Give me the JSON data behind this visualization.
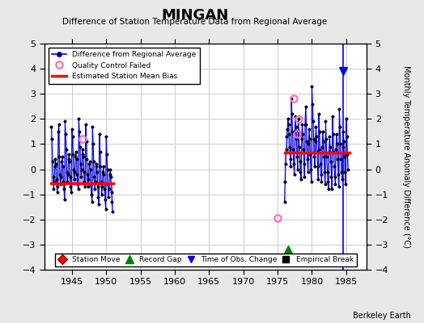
{
  "title": "MINGAN",
  "subtitle": "Difference of Station Temperature Data from Regional Average",
  "ylabel_right": "Monthly Temperature Anomaly Difference (°C)",
  "xlim": [
    1941,
    1988
  ],
  "ylim": [
    -4,
    5
  ],
  "yticks": [
    -4,
    -3,
    -2,
    -1,
    0,
    1,
    2,
    3,
    4,
    5
  ],
  "xticks": [
    1945,
    1950,
    1955,
    1960,
    1965,
    1970,
    1975,
    1980,
    1985
  ],
  "background_color": "#e8e8e8",
  "plot_bg_color": "#ffffff",
  "grid_color": "#cccccc",
  "watermark": "Berkeley Earth",
  "segment1_bias": -0.55,
  "segment2_bias": 0.65,
  "segment1_start": 1942.0,
  "segment1_end": 1951.0,
  "segment2_start": 1976.0,
  "segment2_end": 1985.5,
  "qc_failed_points": [
    [
      1946.5,
      1.2
    ],
    [
      1977.4,
      2.8
    ],
    [
      1978.1,
      2.0
    ],
    [
      1977.8,
      1.4
    ],
    [
      1975.0,
      -1.95
    ]
  ],
  "record_gap_x": 1976.5,
  "record_gap_y": -3.2,
  "time_obs_change_x": [
    1984.5
  ],
  "data_segment1": {
    "years": [
      1942.0,
      1942.083,
      1942.167,
      1942.25,
      1942.333,
      1942.417,
      1942.5,
      1942.583,
      1942.667,
      1942.75,
      1942.833,
      1942.917,
      1943.0,
      1943.083,
      1943.167,
      1943.25,
      1943.333,
      1943.417,
      1943.5,
      1943.583,
      1943.667,
      1943.75,
      1943.833,
      1943.917,
      1944.0,
      1944.083,
      1944.167,
      1944.25,
      1944.333,
      1944.417,
      1944.5,
      1944.583,
      1944.667,
      1944.75,
      1944.833,
      1944.917,
      1945.0,
      1945.083,
      1945.167,
      1945.25,
      1945.333,
      1945.417,
      1945.5,
      1945.583,
      1945.667,
      1945.75,
      1945.833,
      1945.917,
      1946.0,
      1946.083,
      1946.167,
      1946.25,
      1946.333,
      1946.417,
      1946.5,
      1946.583,
      1946.667,
      1946.75,
      1946.833,
      1946.917,
      1947.0,
      1947.083,
      1947.167,
      1947.25,
      1947.333,
      1947.417,
      1947.5,
      1947.583,
      1947.667,
      1947.75,
      1947.833,
      1947.917,
      1948.0,
      1948.083,
      1948.167,
      1948.25,
      1948.333,
      1948.417,
      1948.5,
      1948.583,
      1948.667,
      1948.75,
      1948.833,
      1948.917,
      1949.0,
      1949.083,
      1949.167,
      1949.25,
      1949.333,
      1949.417,
      1949.5,
      1949.583,
      1949.667,
      1949.75,
      1949.833,
      1949.917,
      1950.0,
      1950.083,
      1950.167,
      1950.25,
      1950.333,
      1950.417,
      1950.5,
      1950.583,
      1950.667,
      1950.75,
      1950.833,
      1950.917
    ],
    "values": [
      1.7,
      1.2,
      0.3,
      -0.3,
      -0.8,
      -0.5,
      0.1,
      0.4,
      0.2,
      -0.4,
      -0.9,
      -0.7,
      1.5,
      1.8,
      0.5,
      -0.2,
      -0.6,
      -0.3,
      0.3,
      0.5,
      0.1,
      -0.5,
      -0.8,
      -1.2,
      1.9,
      1.4,
      0.8,
      -0.1,
      -0.5,
      -0.2,
      0.4,
      0.6,
      0.3,
      -0.3,
      -0.7,
      -0.9,
      1.6,
      1.3,
      0.6,
      0.0,
      -0.4,
      -0.1,
      0.5,
      0.7,
      0.4,
      -0.2,
      -0.6,
      -0.8,
      2.0,
      1.5,
      0.9,
      0.2,
      -0.3,
      0.0,
      0.6,
      0.8,
      0.5,
      -0.1,
      -0.5,
      -0.7,
      1.8,
      1.1,
      0.4,
      -0.2,
      -0.7,
      -0.4,
      0.2,
      0.3,
      0.0,
      -0.6,
      -1.0,
      -1.3,
      1.7,
      1.0,
      0.3,
      -0.3,
      -0.8,
      -0.5,
      0.1,
      0.2,
      -0.1,
      -0.7,
      -1.1,
      -1.4,
      1.4,
      0.7,
      0.1,
      -0.5,
      -1.0,
      -0.7,
      -0.1,
      0.1,
      -0.2,
      -0.8,
      -1.2,
      -1.6,
      1.3,
      0.6,
      0.0,
      -0.6,
      -1.1,
      -0.8,
      -0.2,
      0.0,
      -0.3,
      -0.9,
      -1.3,
      -1.7
    ]
  },
  "data_segment2": {
    "years": [
      1976.0,
      1976.083,
      1976.167,
      1976.25,
      1976.333,
      1976.417,
      1976.5,
      1976.583,
      1976.667,
      1976.75,
      1976.833,
      1976.917,
      1977.0,
      1977.083,
      1977.167,
      1977.25,
      1977.333,
      1977.417,
      1977.5,
      1977.583,
      1977.667,
      1977.75,
      1977.833,
      1977.917,
      1978.0,
      1978.083,
      1978.167,
      1978.25,
      1978.333,
      1978.417,
      1978.5,
      1978.583,
      1978.667,
      1978.75,
      1978.833,
      1978.917,
      1979.0,
      1979.083,
      1979.167,
      1979.25,
      1979.333,
      1979.417,
      1979.5,
      1979.583,
      1979.667,
      1979.75,
      1979.833,
      1979.917,
      1980.0,
      1980.083,
      1980.167,
      1980.25,
      1980.333,
      1980.417,
      1980.5,
      1980.583,
      1980.667,
      1980.75,
      1980.833,
      1980.917,
      1981.0,
      1981.083,
      1981.167,
      1981.25,
      1981.333,
      1981.417,
      1981.5,
      1981.583,
      1981.667,
      1981.75,
      1981.833,
      1981.917,
      1982.0,
      1982.083,
      1982.167,
      1982.25,
      1982.333,
      1982.417,
      1982.5,
      1982.583,
      1982.667,
      1982.75,
      1982.833,
      1982.917,
      1983.0,
      1983.083,
      1983.167,
      1983.25,
      1983.333,
      1983.417,
      1983.5,
      1983.583,
      1983.667,
      1983.75,
      1983.833,
      1983.917,
      1984.0,
      1984.083,
      1984.167,
      1984.25,
      1984.333,
      1984.417,
      1984.5,
      1984.583,
      1984.667,
      1984.75,
      1984.833,
      1984.917,
      1985.0,
      1985.083,
      1985.167,
      1985.25
    ],
    "values": [
      -1.3,
      -0.5,
      0.2,
      0.8,
      1.3,
      1.6,
      2.0,
      1.8,
      1.4,
      0.9,
      0.4,
      0.1,
      2.8,
      2.2,
      1.5,
      0.8,
      0.2,
      -0.2,
      1.5,
      2.1,
      1.7,
      1.2,
      0.5,
      0.0,
      2.0,
      1.5,
      0.9,
      0.3,
      -0.1,
      -0.4,
      1.2,
      1.8,
      1.4,
      0.8,
      0.2,
      -0.3,
      1.8,
      2.5,
      1.8,
      1.1,
      0.4,
      -0.1,
      1.0,
      1.6,
      1.2,
      0.6,
      0.0,
      -0.5,
      3.3,
      2.6,
      1.9,
      1.2,
      0.5,
      0.1,
      1.1,
      1.7,
      1.3,
      0.7,
      0.1,
      -0.4,
      2.2,
      1.5,
      0.8,
      0.2,
      -0.2,
      -0.5,
      0.9,
      1.5,
      1.1,
      0.5,
      -0.1,
      -0.6,
      1.9,
      1.2,
      0.5,
      -0.1,
      -0.5,
      -0.8,
      0.7,
      1.3,
      0.9,
      0.3,
      -0.3,
      -0.8,
      2.1,
      1.4,
      0.7,
      0.1,
      -0.3,
      -0.6,
      0.8,
      1.4,
      1.0,
      0.4,
      -0.2,
      -0.7,
      2.4,
      1.7,
      1.0,
      0.4,
      -0.1,
      -0.4,
      0.9,
      1.5,
      1.1,
      0.5,
      -0.1,
      -0.6,
      2.0,
      1.3,
      0.6,
      0.0
    ]
  }
}
